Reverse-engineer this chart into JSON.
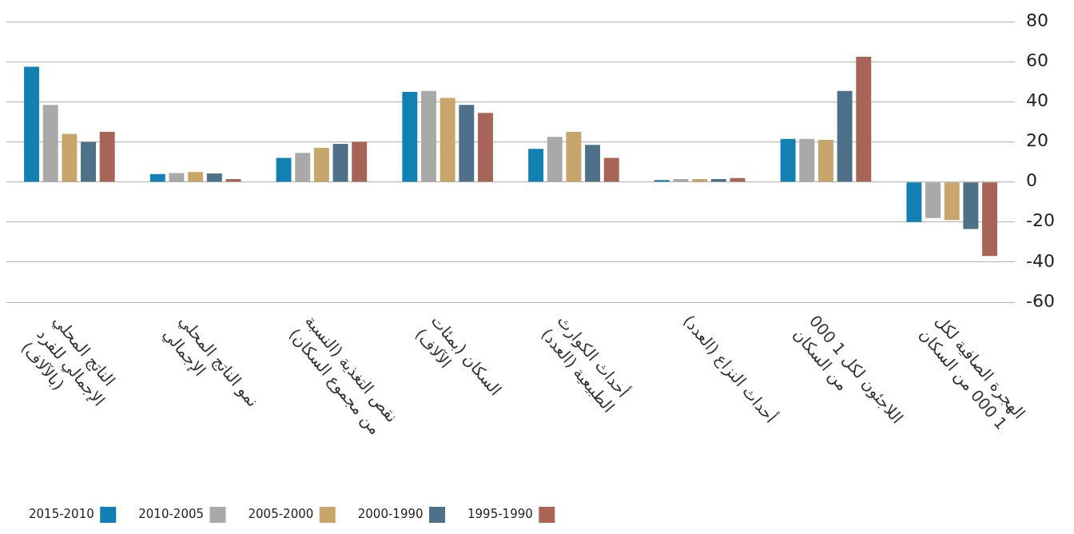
{
  "chart_data": {
    "type": "bar",
    "categories": [
      "الناتج المحلي الإجمالي للفرد (بالآلاف)",
      "نمو الناتج المحلي الإجمالي",
      "نقص التغذية (النسبة من مجموع السكان)",
      "السكان (بمئات الآلاف)",
      "أحداث الكوارث الطبيعية (العدد)",
      "أحداث النزاع (العدد)",
      "اللاجئون لكل 1 000 من السكان",
      "الهجرة الصافية لكل 1 000 من السكان"
    ],
    "series": [
      {
        "name": "2015-2010",
        "color": "#1380b4",
        "values": [
          57.5,
          4,
          12,
          45,
          16.5,
          1,
          21.5,
          -20
        ]
      },
      {
        "name": "2010-2005",
        "color": "#a9a9a9",
        "values": [
          38.5,
          4.5,
          14.5,
          45.5,
          22.5,
          1.5,
          21.5,
          -18
        ]
      },
      {
        "name": "2005-2000",
        "color": "#c8a66b",
        "values": [
          24,
          5,
          17,
          42,
          25,
          1.5,
          21,
          -19
        ]
      },
      {
        "name": "2000-1990",
        "color": "#4e7189",
        "values": [
          20,
          4.3,
          19,
          38.5,
          18.5,
          1.5,
          45.5,
          -23.5
        ]
      },
      {
        "name": "1995-1990",
        "color": "#a86456",
        "values": [
          25,
          1.5,
          20,
          34.5,
          12,
          2,
          62.5,
          -37
        ]
      }
    ],
    "ylim": [
      -60,
      80
    ],
    "yticks": [
      -60,
      -40,
      -20,
      0,
      20,
      40,
      60,
      80
    ],
    "grid": "y",
    "legend": "bottom left"
  }
}
